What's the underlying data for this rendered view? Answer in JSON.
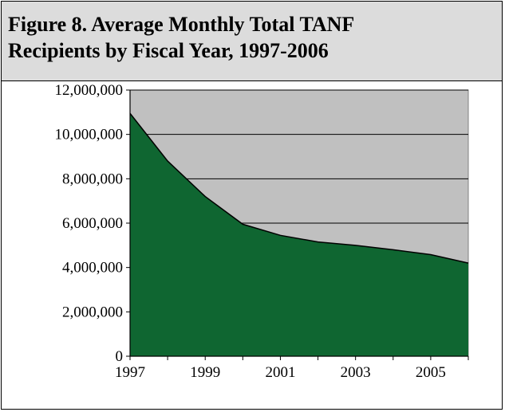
{
  "figure": {
    "title_line1": "Figure 8. Average Monthly Total TANF",
    "title_line2": "Recipients by Fiscal Year, 1997-2006"
  },
  "chart_data": {
    "type": "area",
    "title": "Figure 8. Average Monthly Total TANF Recipients by Fiscal Year, 1997-2006",
    "xlabel": "",
    "ylabel": "",
    "x": [
      1997,
      1998,
      1999,
      2000,
      2001,
      2002,
      2003,
      2004,
      2005,
      2006
    ],
    "series": [
      {
        "values": [
          10950000,
          8800000,
          7200000,
          5950000,
          5450000,
          5150000,
          5000000,
          4800000,
          4580000,
          4200000
        ]
      }
    ],
    "ylim": [
      0,
      12000000
    ],
    "yticks": [
      0,
      2000000,
      4000000,
      6000000,
      8000000,
      10000000,
      12000000
    ],
    "ytick_labels": [
      "0",
      "2,000,000",
      "4,000,000",
      "6,000,000",
      "8,000,000",
      "10,000,000",
      "12,000,000"
    ],
    "xtick_labels": [
      "1997",
      "1999",
      "2001",
      "2003",
      "2005"
    ],
    "grid": true,
    "legend": "none",
    "colors": {
      "area_fill": "#0f6631",
      "plot_background": "#c0c0c0",
      "gridline": "#000000",
      "title_band": "#dcdcdc"
    }
  }
}
